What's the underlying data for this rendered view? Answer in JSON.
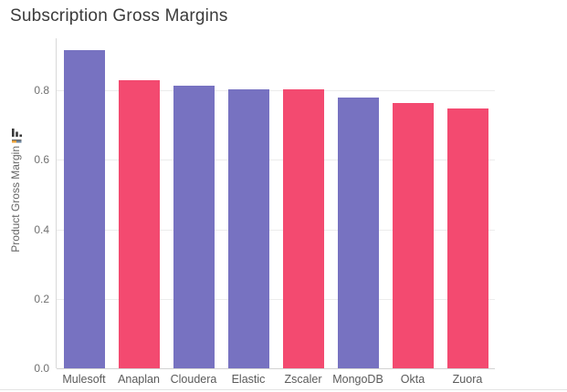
{
  "chart_data": {
    "type": "bar",
    "title": "Subscription Gross Margins",
    "xlabel": "",
    "ylabel": "Product Gross Margin",
    "categories": [
      "Mulesoft",
      "Anaplan",
      "Cloudera",
      "Elastic",
      "Zscaler",
      "MongoDB",
      "Okta",
      "Zuora"
    ],
    "values": [
      0.917,
      0.829,
      0.813,
      0.804,
      0.802,
      0.779,
      0.764,
      0.747
    ],
    "bar_colors": [
      "#7772C1",
      "#F34A70",
      "#7772C1",
      "#7772C1",
      "#F34A70",
      "#7772C1",
      "#F34A70",
      "#F34A70"
    ],
    "palette": {
      "purple": "#7772C1",
      "pink": "#F34A70"
    },
    "ytick_labels": [
      "0.0",
      "0.2",
      "0.4",
      "0.6",
      "0.8"
    ],
    "yticks": [
      0,
      0.2,
      0.4,
      0.6,
      0.8
    ],
    "ylim": [
      0,
      0.95
    ],
    "grid": true,
    "legend": "none",
    "sort_indicator": "descending"
  }
}
